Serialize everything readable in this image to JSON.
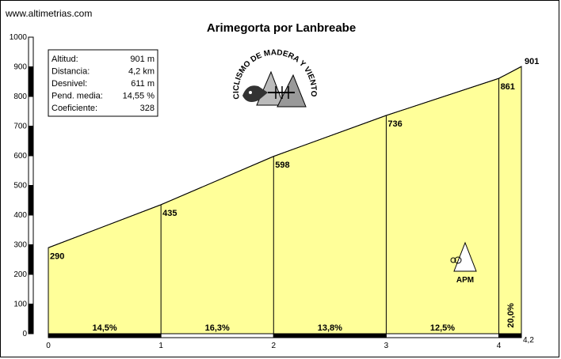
{
  "site": "www.altimetrias.com",
  "chart_data": {
    "type": "area",
    "title": "Arimegorta por Lanbreabe",
    "xlabel": "",
    "ylabel": "",
    "xlim": [
      0,
      4.2
    ],
    "ylim": [
      0,
      1000
    ],
    "y_ticks": [
      0,
      100,
      200,
      300,
      400,
      500,
      600,
      700,
      800,
      900,
      1000
    ],
    "x_ticks": [
      "0",
      "1",
      "2",
      "3",
      "4",
      "4,2"
    ],
    "x": [
      0,
      1,
      2,
      3,
      4,
      4.2
    ],
    "y": [
      290,
      435,
      598,
      736,
      861,
      901
    ],
    "point_labels": [
      "290",
      "435",
      "598",
      "736",
      "861",
      "901"
    ],
    "segments": [
      {
        "from": 0,
        "to": 1,
        "grade": "14,5%"
      },
      {
        "from": 1,
        "to": 2,
        "grade": "16,3%"
      },
      {
        "from": 2,
        "to": 3,
        "grade": "13,8%"
      },
      {
        "from": 3,
        "to": 4,
        "grade": "12,5%"
      },
      {
        "from": 4,
        "to": 4.2,
        "grade": "20,0%"
      }
    ],
    "fill_color": "#ffff99",
    "line_color": "#000000"
  },
  "info_box": {
    "rows": [
      {
        "label": "Altitud:",
        "value": "901 m"
      },
      {
        "label": "Distancia:",
        "value": "4,2 km"
      },
      {
        "label": "Desnivel:",
        "value": "611 m"
      },
      {
        "label": "Pend. media:",
        "value": "14,55 %"
      },
      {
        "label": "Coeficiente:",
        "value": "328"
      }
    ]
  },
  "logo": {
    "text": "CICLISMO DE MADERA Y VIENTO"
  },
  "badge": {
    "text": "APM"
  }
}
